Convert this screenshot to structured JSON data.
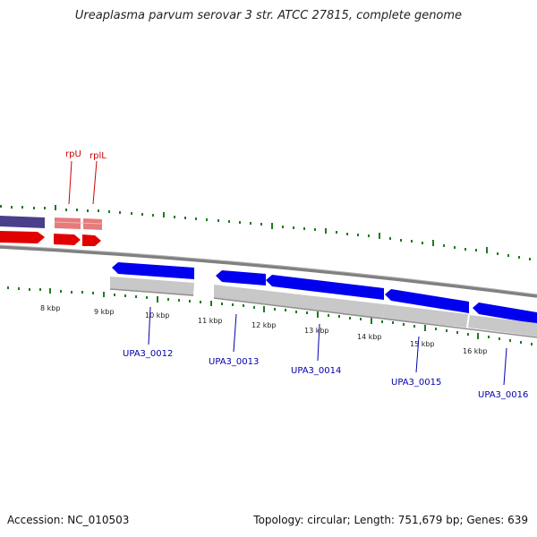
{
  "title": "Ureaplasma parvum serovar 3 str. ATCC 27815, complete genome",
  "footer": {
    "accession": "Accession: NC_010503",
    "summary": "Topology: circular; Length: 751,679 bp; Genes: 639"
  },
  "colors": {
    "forward_cds": "#0000ee",
    "reverse_cds": "#e00000",
    "rrna_dark": "#4a3f8a",
    "rrna_pink": "#e77b7b",
    "gc_skew": "#c0c0c0",
    "tick": "#1f7a1f",
    "backbone": "#808080",
    "red_label": "#cc0000",
    "blue_label": "#0000aa"
  },
  "scale_labels": [
    "8 kbp",
    "9 kbp",
    "10 kbp",
    "11 kbp",
    "12 kbp",
    "13 kbp",
    "14 kbp",
    "15 kbp",
    "16 kbp"
  ],
  "top_gene_labels": [
    "rpU",
    "rplL"
  ],
  "bottom_gene_labels": [
    "UPA3_0012",
    "UPA3_0013",
    "UPA3_0014",
    "UPA3_0015",
    "UPA3_0016"
  ]
}
